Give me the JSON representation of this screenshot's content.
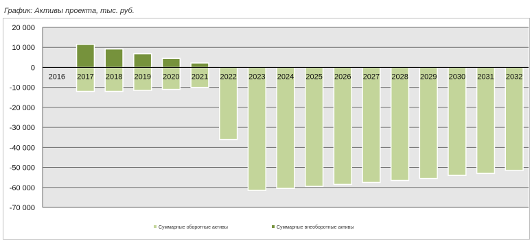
{
  "chart_data": {
    "type": "bar",
    "title": "График: Активы проекта, тыс. руб.",
    "categories": [
      "2016",
      "2017",
      "2018",
      "2019",
      "2020",
      "2021",
      "2022",
      "2023",
      "2024",
      "2025",
      "2026",
      "2027",
      "2028",
      "2029",
      "2030",
      "2031",
      "2032"
    ],
    "series": [
      {
        "name": "Суммарные оборотные активы",
        "color": "#c3d59a",
        "values": [
          0,
          -12000,
          -12000,
          -11500,
          -11000,
          -10000,
          -36000,
          -61500,
          -60500,
          -59500,
          -58500,
          -57500,
          -56500,
          -55500,
          -54000,
          -53000,
          -51500
        ]
      },
      {
        "name": "Суммарные внеоборотные активы",
        "color": "#76923c",
        "values": [
          0,
          11500,
          9200,
          6800,
          4500,
          2200,
          0,
          0,
          0,
          0,
          0,
          0,
          0,
          0,
          0,
          0,
          0
        ]
      }
    ],
    "stacked": false,
    "xlabel": "",
    "ylabel": "",
    "ylim": [
      -70000,
      20000
    ],
    "ytick_labels": [
      "20 000",
      "10 000",
      "0",
      "-10 000",
      "-20 000",
      "-30 000",
      "-40 000",
      "-50 000",
      "-60 000",
      "-70 000"
    ],
    "grid": true,
    "legend_position": "bottom"
  }
}
